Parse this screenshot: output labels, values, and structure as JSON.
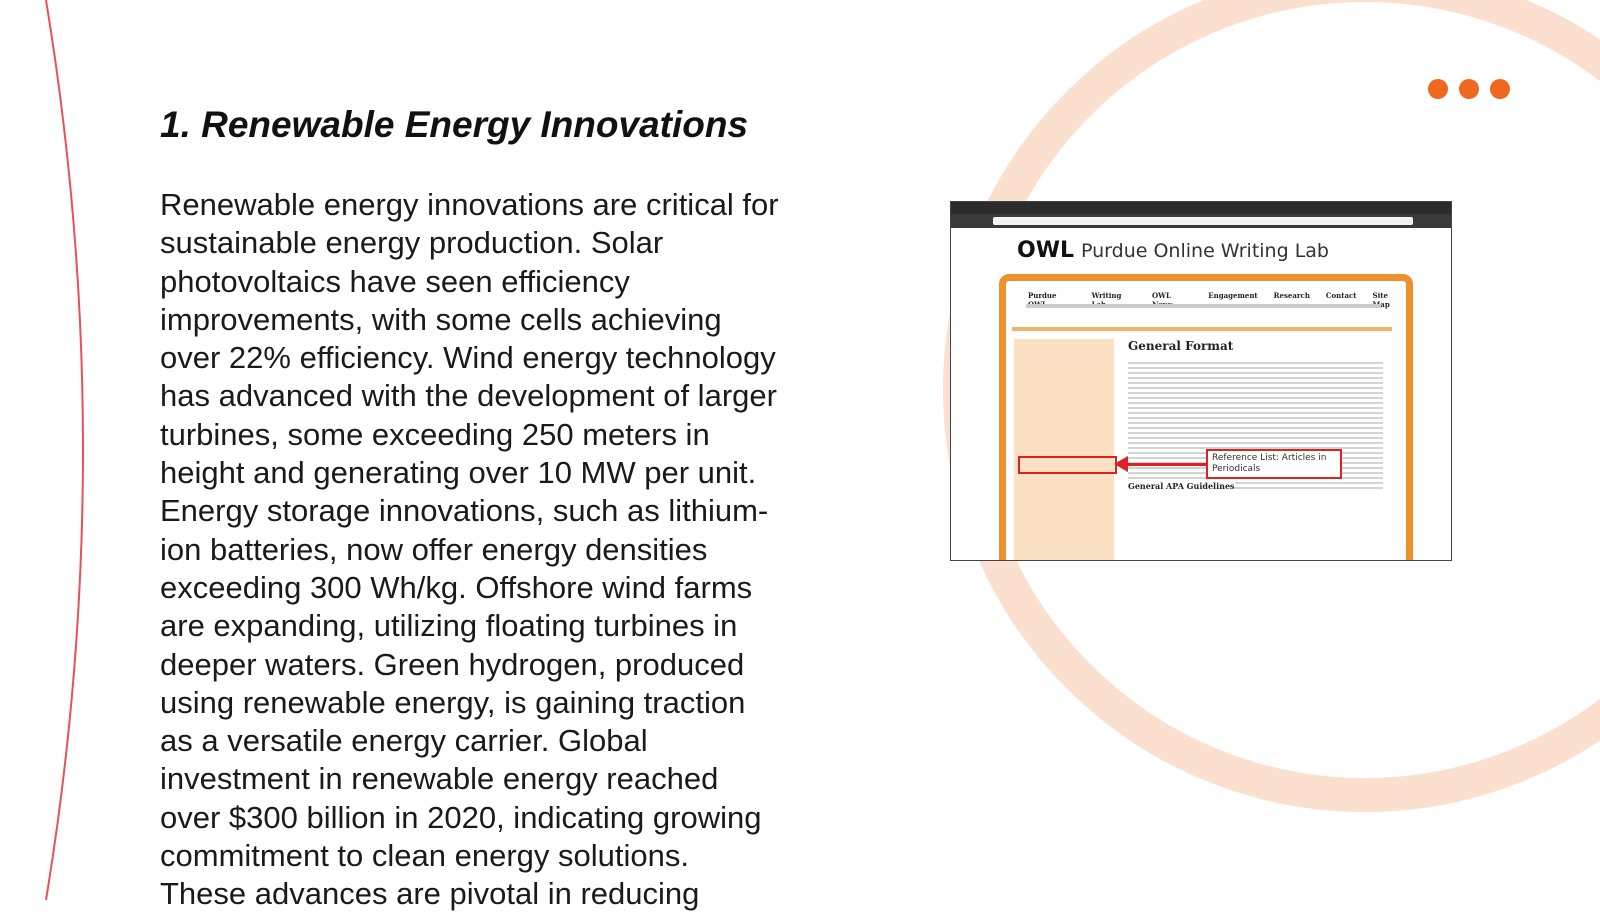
{
  "slide": {
    "heading": "1. Renewable Energy Innovations",
    "paragraph_lines": [
      "Renewable energy innovations are critical for",
      "sustainable energy production. Solar",
      "photovoltaics have seen efficiency",
      "improvements, with some cells achieving",
      "over 22% efficiency. Wind energy technology",
      "has advanced with the development of larger",
      "turbines, some exceeding 250 meters in",
      "height and generating over 10 MW per unit.",
      "Energy storage innovations, such as lithium-",
      "ion batteries, now offer energy densities",
      "exceeding 300 Wh/kg. Offshore wind farms",
      "are expanding, utilizing floating turbines in",
      "deeper waters. Green hydrogen, produced",
      "using renewable energy, is gaining traction",
      "as a versatile energy carrier. Global",
      "investment in renewable energy reached",
      "over $300 billion in 2020, indicating growing",
      "commitment to clean energy solutions.",
      "These advances are pivotal in reducing"
    ],
    "screenshot": {
      "logo": "OWL",
      "site_title": "Purdue Online Writing Lab",
      "nav": [
        "Purdue OWL",
        "Writing Lab",
        "OWL News",
        "Engagement",
        "Research",
        "Contact",
        "Site Map"
      ],
      "content_heading": "General Format",
      "callout": "Reference List: Articles in Periodicals",
      "subheading": "General APA Guidelines"
    }
  }
}
